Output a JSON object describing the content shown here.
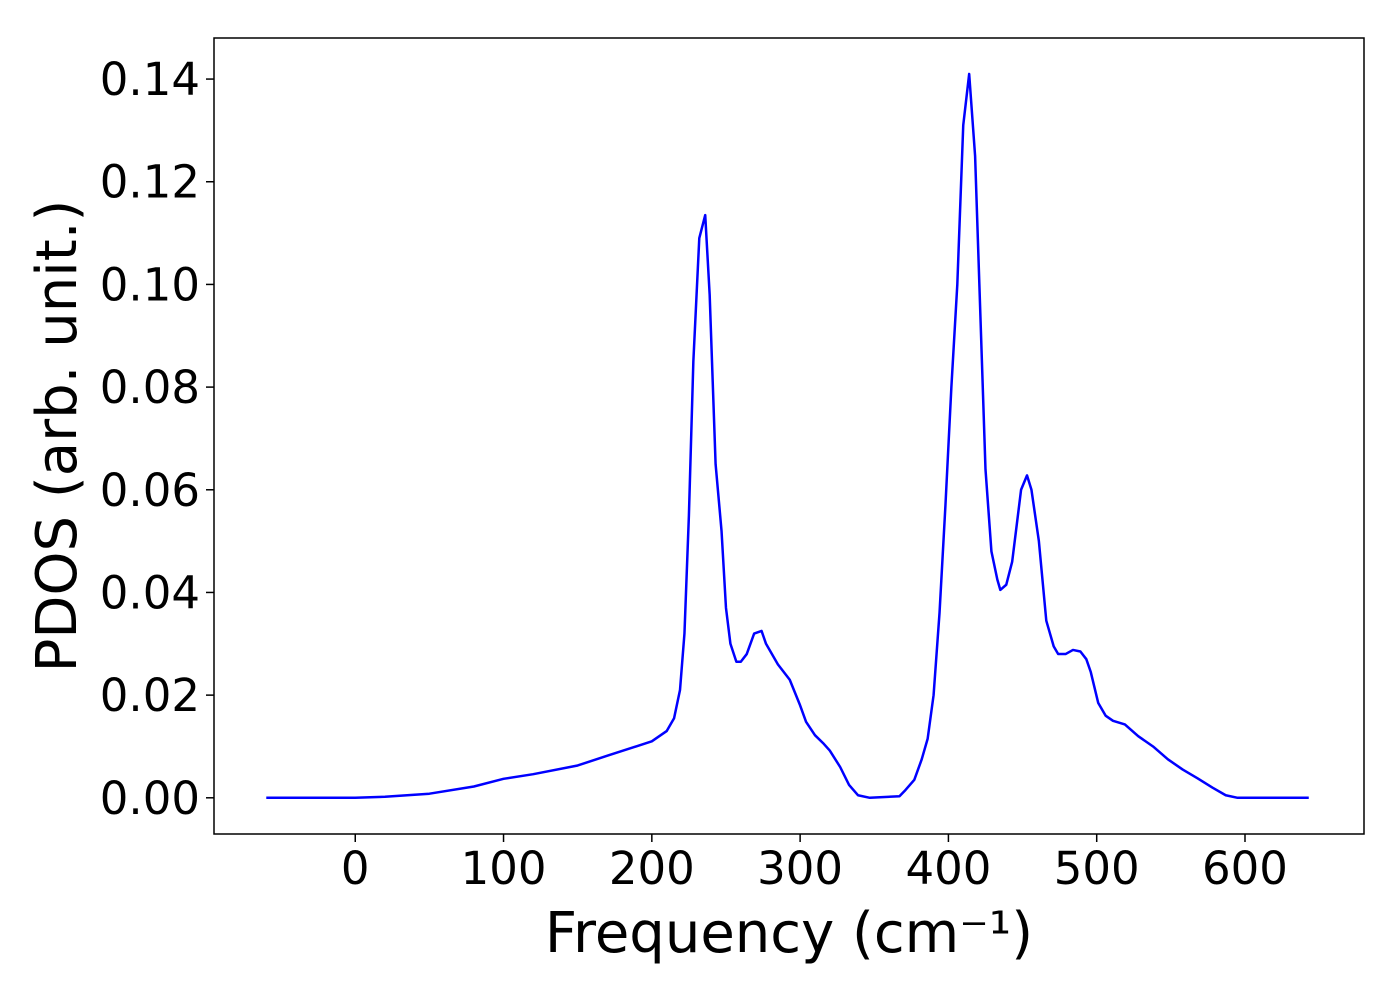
{
  "chart_data": {
    "type": "line",
    "xlabel": "Frequency (cm⁻¹)",
    "ylabel": "PDOS (arb. unit.)",
    "x": [
      -60,
      0,
      20,
      50,
      80,
      100,
      120,
      150,
      170,
      200,
      210,
      215,
      219,
      222,
      225,
      228,
      232,
      236,
      239,
      243,
      247,
      250,
      253,
      257,
      260,
      264,
      269,
      274,
      277,
      285,
      293,
      300,
      304,
      310,
      316,
      320,
      327,
      333,
      339,
      347,
      367,
      371,
      377,
      382,
      386,
      390,
      394,
      398,
      402,
      406,
      410,
      414,
      418,
      425,
      429,
      433,
      435,
      439,
      443,
      449,
      453,
      456,
      461,
      466,
      471,
      474,
      479,
      484,
      489,
      493,
      496,
      501,
      506,
      511,
      519,
      528,
      538,
      548,
      558,
      568,
      578,
      587,
      595,
      643
    ],
    "series": [
      {
        "name": "PDOS",
        "color": "#0000ff",
        "values": [
          0,
          0,
          0.0002,
          0.0008,
          0.0022,
          0.0037,
          0.0046,
          0.0063,
          0.0082,
          0.011,
          0.013,
          0.0155,
          0.021,
          0.032,
          0.055,
          0.085,
          0.109,
          0.1135,
          0.098,
          0.065,
          0.052,
          0.037,
          0.03,
          0.0265,
          0.0265,
          0.028,
          0.032,
          0.0325,
          0.03,
          0.026,
          0.023,
          0.018,
          0.0148,
          0.0122,
          0.0105,
          0.0092,
          0.006,
          0.0025,
          0.0005,
          0,
          0.0003,
          0.0015,
          0.0035,
          0.0075,
          0.0115,
          0.02,
          0.036,
          0.057,
          0.08,
          0.1,
          0.131,
          0.141,
          0.125,
          0.064,
          0.048,
          0.0425,
          0.0405,
          0.0415,
          0.046,
          0.06,
          0.0628,
          0.06,
          0.05,
          0.0345,
          0.0295,
          0.028,
          0.028,
          0.0288,
          0.0285,
          0.027,
          0.0245,
          0.0185,
          0.016,
          0.015,
          0.0143,
          0.012,
          0.01,
          0.0075,
          0.0055,
          0.0038,
          0.002,
          0.0005,
          0,
          0
        ]
      }
    ],
    "xlim": [
      -95.25,
      680.25
    ],
    "ylim": [
      -0.00705,
      0.148
    ],
    "xticks": [
      0,
      100,
      200,
      300,
      400,
      500,
      600
    ],
    "yticks": [
      {
        "value": 0,
        "label": "0.00"
      },
      {
        "value": 0.02,
        "label": "0.02"
      },
      {
        "value": 0.04,
        "label": "0.04"
      },
      {
        "value": 0.06,
        "label": "0.06"
      },
      {
        "value": 0.08,
        "label": "0.08"
      },
      {
        "value": 0.1,
        "label": "0.10"
      },
      {
        "value": 0.12,
        "label": "0.12"
      },
      {
        "value": 0.14,
        "label": "0.14"
      }
    ],
    "grid": false
  }
}
